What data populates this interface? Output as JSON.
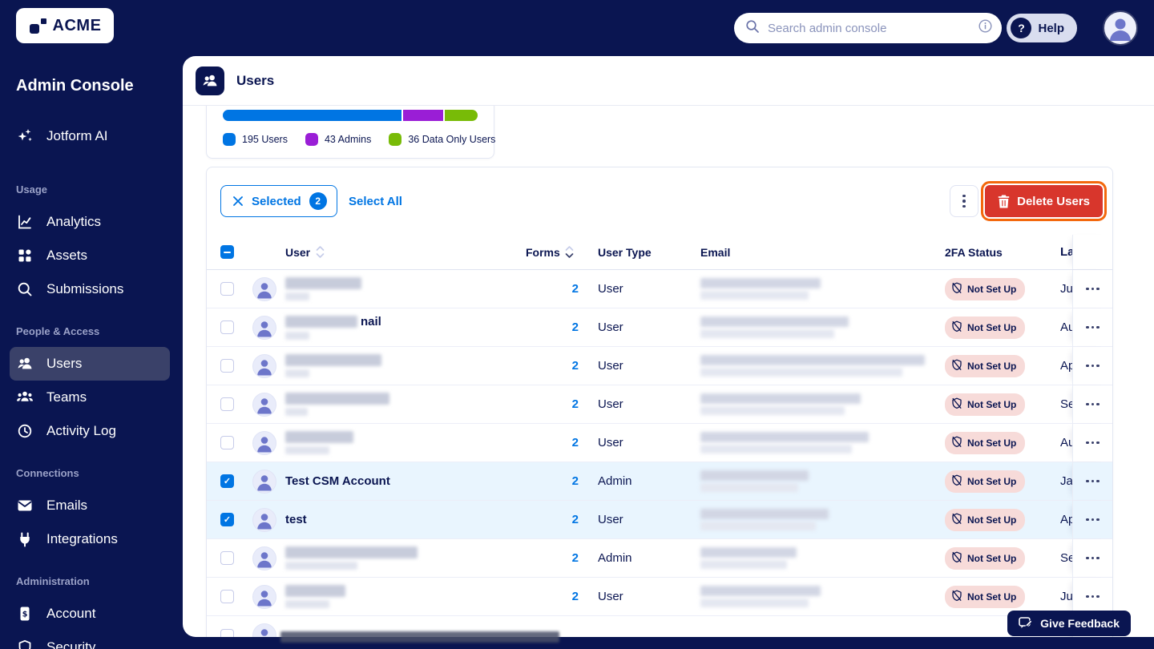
{
  "topbar": {
    "logo_text": "ACME",
    "search_placeholder": "Search admin console",
    "help_label": "Help"
  },
  "sidebar": {
    "title": "Admin Console",
    "ai_item": {
      "label": "Jotform AI",
      "icon": "sparkles-icon"
    },
    "sections": [
      {
        "label": "Usage",
        "items": [
          {
            "label": "Analytics",
            "icon": "analytics-icon",
            "active": false
          },
          {
            "label": "Assets",
            "icon": "assets-icon",
            "active": false
          },
          {
            "label": "Submissions",
            "icon": "search-icon",
            "active": false
          }
        ]
      },
      {
        "label": "People & Access",
        "items": [
          {
            "label": "Users",
            "icon": "users-icon",
            "active": true
          },
          {
            "label": "Teams",
            "icon": "teams-icon",
            "active": false
          },
          {
            "label": "Activity Log",
            "icon": "activity-icon",
            "active": false
          }
        ]
      },
      {
        "label": "Connections",
        "items": [
          {
            "label": "Emails",
            "icon": "email-icon",
            "active": false
          },
          {
            "label": "Integrations",
            "icon": "plug-icon",
            "active": false
          }
        ]
      },
      {
        "label": "Administration",
        "items": [
          {
            "label": "Account",
            "icon": "account-icon",
            "active": false
          },
          {
            "label": "Security",
            "icon": "shield-icon",
            "active": false
          }
        ]
      }
    ]
  },
  "page": {
    "title": "Users"
  },
  "stats": {
    "segments": [
      {
        "label": "195 Users",
        "value": 195,
        "color": "#0075e3"
      },
      {
        "label": "43 Admins",
        "value": 43,
        "color": "#9a1ed6"
      },
      {
        "label": "36 Data Only Users",
        "value": 36,
        "color": "#78bb07"
      }
    ]
  },
  "toolbar": {
    "selected_label": "Selected",
    "selected_count": "2",
    "select_all_label": "Select All",
    "delete_label": "Delete Users",
    "highlight_color": "#f3680d"
  },
  "table": {
    "columns": {
      "user": "User",
      "forms": "Forms",
      "user_type": "User Type",
      "email": "Email",
      "tfa": "2FA Status",
      "last": "La"
    },
    "tfa_badge": "Not Set Up",
    "rows": [
      {
        "name": null,
        "name_tail": "",
        "forms": "2",
        "type": "User",
        "last": "Ju",
        "tfa": true,
        "selected": false,
        "partial": false,
        "blur": {
          "name_w": 95,
          "sub_w": 30,
          "email_w": 150
        }
      },
      {
        "name": null,
        "name_tail": "nail",
        "forms": "2",
        "type": "User",
        "last": "Au",
        "tfa": true,
        "selected": false,
        "partial": false,
        "blur": {
          "name_w": 90,
          "sub_w": 30,
          "email_w": 185
        }
      },
      {
        "name": null,
        "name_tail": "",
        "forms": "2",
        "type": "User",
        "last": "Ap",
        "tfa": true,
        "selected": false,
        "partial": false,
        "blur": {
          "name_w": 120,
          "sub_w": 30,
          "email_w": 280
        }
      },
      {
        "name": null,
        "name_tail": "",
        "forms": "2",
        "type": "User",
        "last": "Se",
        "tfa": true,
        "selected": false,
        "partial": false,
        "blur": {
          "name_w": 130,
          "sub_w": 28,
          "email_w": 200
        }
      },
      {
        "name": null,
        "name_tail": "",
        "forms": "2",
        "type": "User",
        "last": "Au",
        "tfa": true,
        "selected": false,
        "partial": false,
        "blur": {
          "name_w": 85,
          "sub_w": 55,
          "email_w": 210
        }
      },
      {
        "name": "Test CSM Account",
        "name_tail": "",
        "forms": "2",
        "type": "Admin",
        "last": "Ja",
        "tfa": true,
        "selected": true,
        "partial": false,
        "blur": {
          "name_w": 0,
          "sub_w": 0,
          "email_w": 135
        }
      },
      {
        "name": "test",
        "name_tail": "",
        "forms": "2",
        "type": "User",
        "last": "Ap",
        "tfa": true,
        "selected": true,
        "partial": false,
        "blur": {
          "name_w": 0,
          "sub_w": 0,
          "email_w": 160
        }
      },
      {
        "name": null,
        "name_tail": "",
        "forms": "2",
        "type": "Admin",
        "last": "Se",
        "tfa": true,
        "selected": false,
        "partial": false,
        "blur": {
          "name_w": 165,
          "sub_w": 90,
          "email_w": 120
        }
      },
      {
        "name": null,
        "name_tail": "",
        "forms": "2",
        "type": "User",
        "last": "Ju",
        "tfa": true,
        "selected": false,
        "partial": false,
        "blur": {
          "name_w": 75,
          "sub_w": 55,
          "email_w": 150
        }
      },
      {
        "name": null,
        "name_tail": "",
        "forms": "",
        "type": "",
        "last": "",
        "tfa": false,
        "selected": false,
        "partial": true,
        "blur": {
          "name_w": 0,
          "sub_w": 0,
          "email_w": 0
        }
      }
    ]
  },
  "feedback": {
    "label": "Give Feedback"
  },
  "colors": {
    "navy": "#0a1551",
    "blue": "#0075e3",
    "purple": "#9a1ed6",
    "green": "#78bb07",
    "red": "#d8362c",
    "orange": "#f3680d",
    "badge_pink": "#f7dbd9"
  }
}
